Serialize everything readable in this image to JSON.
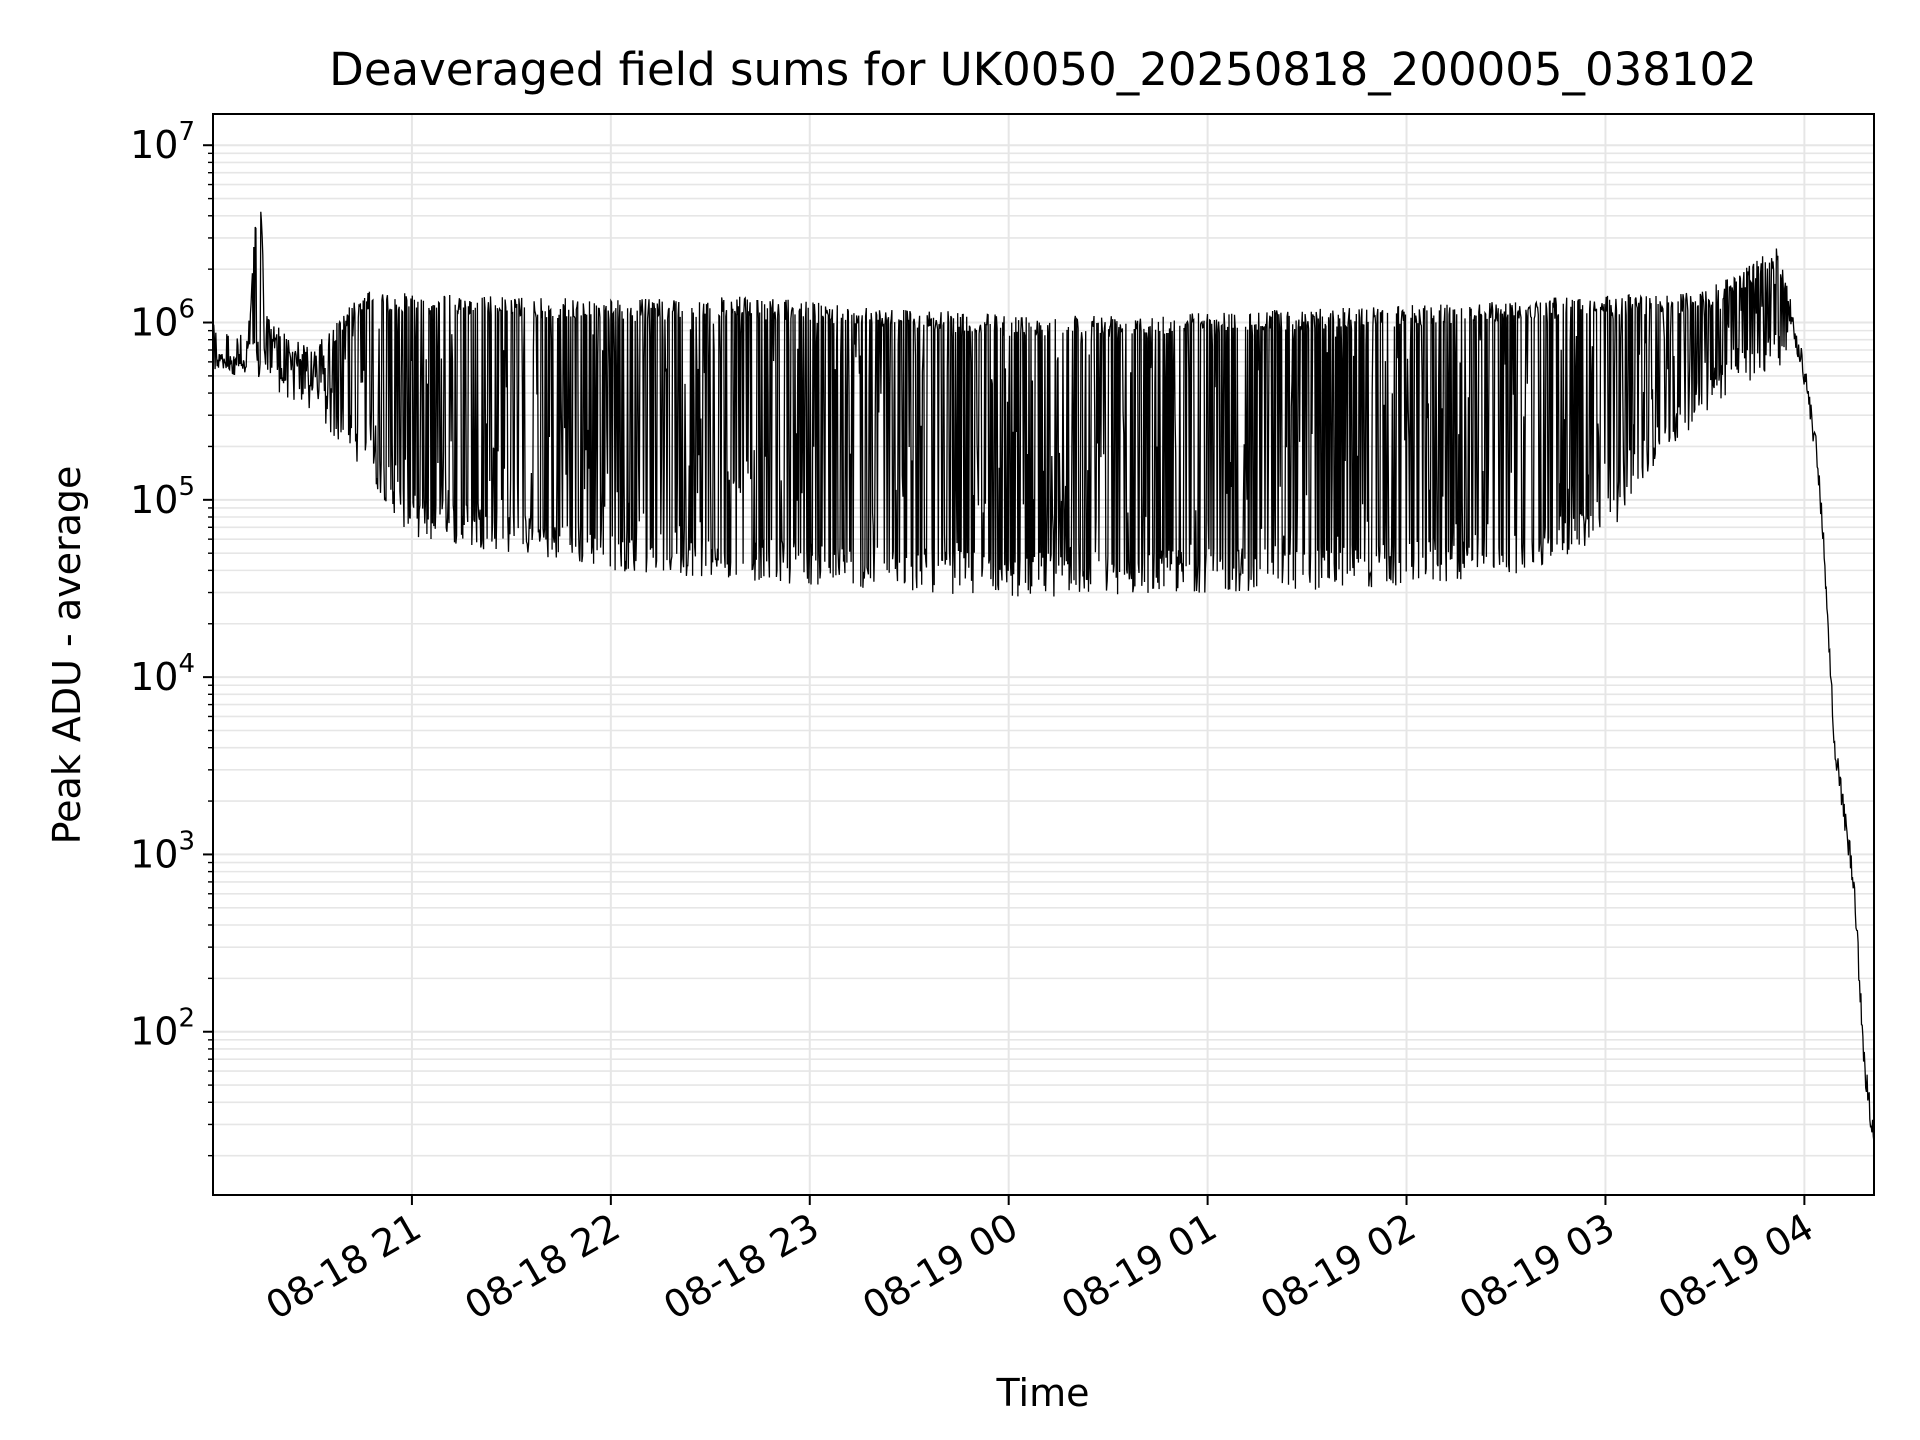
{
  "chart_data": {
    "type": "line",
    "title": "Deaveraged field sums for UK0050_20250818_200005_038102",
    "xlabel": "Time",
    "ylabel": "Peak ADU - average",
    "yscale": "log",
    "ylim": [
      12,
      15000000
    ],
    "xlim": [
      "2025-08-18 20:00",
      "2025-08-19 04:21"
    ],
    "x_ticks": [
      {
        "t": "2025-08-18 21:00",
        "label": "08-18 21"
      },
      {
        "t": "2025-08-18 22:00",
        "label": "08-18 22"
      },
      {
        "t": "2025-08-18 23:00",
        "label": "08-18 23"
      },
      {
        "t": "2025-08-19 00:00",
        "label": "08-19 00"
      },
      {
        "t": "2025-08-19 01:00",
        "label": "08-19 01"
      },
      {
        "t": "2025-08-19 02:00",
        "label": "08-19 02"
      },
      {
        "t": "2025-08-19 03:00",
        "label": "08-19 03"
      },
      {
        "t": "2025-08-19 04:00",
        "label": "08-19 04"
      }
    ],
    "y_ticks": [
      {
        "value": 100,
        "base": "10",
        "exp": "2"
      },
      {
        "value": 1000,
        "base": "10",
        "exp": "3"
      },
      {
        "value": 10000,
        "base": "10",
        "exp": "4"
      },
      {
        "value": 100000,
        "base": "10",
        "exp": "5"
      },
      {
        "value": 1000000,
        "base": "10",
        "exp": "6"
      },
      {
        "value": 10000000,
        "base": "10",
        "exp": "7"
      }
    ],
    "grid": true,
    "line_color": "#000000",
    "series": [
      {
        "upper_envelope": [
          [
            "2025-08-18 20:00",
            700000
          ],
          [
            "2025-08-18 20:10",
            650000
          ],
          [
            "2025-08-18 20:14",
            7500000
          ],
          [
            "2025-08-18 20:16",
            1100000
          ],
          [
            "2025-08-18 20:30",
            700000
          ],
          [
            "2025-08-18 20:45",
            1500000
          ],
          [
            "2025-08-18 21:30",
            1400000
          ],
          [
            "2025-08-18 22:00",
            1350000
          ],
          [
            "2025-08-18 22:40",
            1400000
          ],
          [
            "2025-08-18 23:30",
            1200000
          ],
          [
            "2025-08-19 00:00",
            1100000
          ],
          [
            "2025-08-19 01:00",
            1150000
          ],
          [
            "2025-08-19 02:00",
            1250000
          ],
          [
            "2025-08-19 02:50",
            1400000
          ],
          [
            "2025-08-19 03:30",
            1500000
          ],
          [
            "2025-08-19 03:52",
            2700000
          ],
          [
            "2025-08-19 04:00",
            620000
          ],
          [
            "2025-08-19 04:04",
            200000
          ],
          [
            "2025-08-19 04:06",
            60000
          ],
          [
            "2025-08-19 04:09",
            5000
          ],
          [
            "2025-08-19 04:12",
            2000
          ],
          [
            "2025-08-19 04:15",
            800
          ],
          [
            "2025-08-19 04:18",
            80
          ],
          [
            "2025-08-19 04:21",
            28
          ]
        ],
        "lower_envelope": [
          [
            "2025-08-18 20:00",
            550000
          ],
          [
            "2025-08-18 20:15",
            450000
          ],
          [
            "2025-08-18 20:30",
            300000
          ],
          [
            "2025-08-18 20:45",
            150000
          ],
          [
            "2025-08-18 21:00",
            60000
          ],
          [
            "2025-08-18 21:30",
            50000
          ],
          [
            "2025-08-18 22:00",
            40000
          ],
          [
            "2025-08-18 23:00",
            33000
          ],
          [
            "2025-08-19 00:00",
            28000
          ],
          [
            "2025-08-19 01:00",
            30000
          ],
          [
            "2025-08-19 02:00",
            32000
          ],
          [
            "2025-08-19 02:40",
            40000
          ],
          [
            "2025-08-19 03:00",
            60000
          ],
          [
            "2025-08-19 03:20",
            200000
          ],
          [
            "2025-08-19 03:40",
            450000
          ],
          [
            "2025-08-19 03:55",
            500000
          ]
        ]
      }
    ]
  }
}
